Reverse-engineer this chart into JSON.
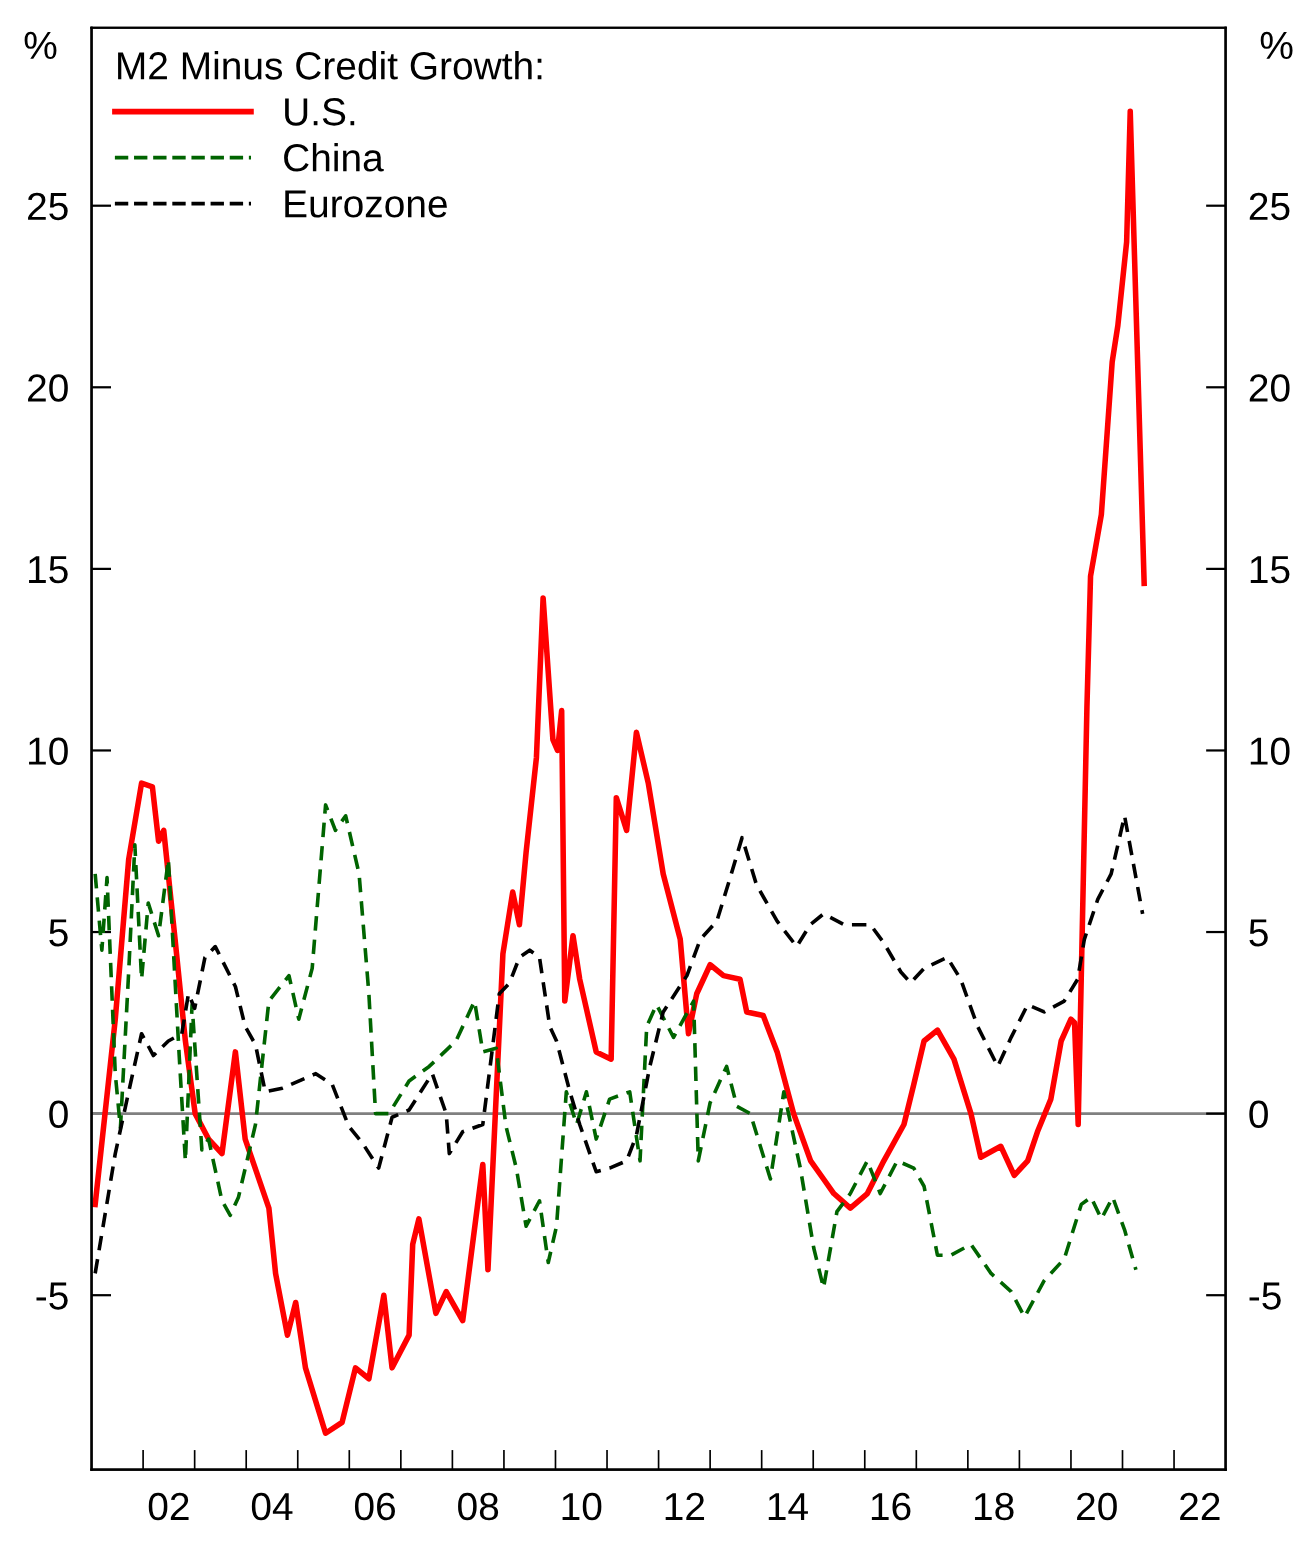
{
  "chart_data": {
    "type": "line",
    "ylabel": "%",
    "y2label": "%",
    "legend_title": "M2 Minus Credit Growth:",
    "legend": "top left",
    "grid": false,
    "xlim": [
      2000.5,
      2022.5
    ],
    "xticks": [
      {
        "value": 2001.5,
        "label": null
      },
      {
        "value": 2002.5,
        "label": null
      },
      {
        "value": 2003.5,
        "label": null
      },
      {
        "value": 2004.5,
        "label": null
      },
      {
        "value": 2005.5,
        "label": null
      },
      {
        "value": 2006.5,
        "label": null
      },
      {
        "value": 2007.5,
        "label": null
      },
      {
        "value": 2008.5,
        "label": null
      },
      {
        "value": 2009.5,
        "label": null
      },
      {
        "value": 2010.5,
        "label": null
      },
      {
        "value": 2011.5,
        "label": null
      },
      {
        "value": 2012.5,
        "label": null
      },
      {
        "value": 2013.5,
        "label": null
      },
      {
        "value": 2014.5,
        "label": null
      },
      {
        "value": 2015.5,
        "label": null
      },
      {
        "value": 2016.5,
        "label": null
      },
      {
        "value": 2017.5,
        "label": null
      },
      {
        "value": 2018.5,
        "label": null
      },
      {
        "value": 2019.5,
        "label": null
      },
      {
        "value": 2020.5,
        "label": null
      },
      {
        "value": 2021.5,
        "label": null
      },
      {
        "value": 2002,
        "label": "02"
      },
      {
        "value": 2004,
        "label": "04"
      },
      {
        "value": 2006,
        "label": "06"
      },
      {
        "value": 2008,
        "label": "08"
      },
      {
        "value": 2010,
        "label": "10"
      },
      {
        "value": 2012,
        "label": "12"
      },
      {
        "value": 2014,
        "label": "14"
      },
      {
        "value": 2016,
        "label": "16"
      },
      {
        "value": 2018,
        "label": "18"
      },
      {
        "value": 2020,
        "label": "20"
      },
      {
        "value": 2022,
        "label": "22"
      }
    ],
    "ylim": [
      -9.8,
      29.9
    ],
    "yticks": [
      -5,
      0,
      5,
      10,
      15,
      20,
      25
    ],
    "y2lim": [
      -9.8,
      29.9
    ],
    "y2ticks": [
      -5,
      0,
      5,
      10,
      15,
      20,
      25
    ],
    "ref_lines": [
      {
        "axis": "y",
        "value": 0,
        "color": "#808080"
      }
    ],
    "series": [
      {
        "name": "U.S.",
        "color": "#ff0000",
        "line_style": "solid",
        "x": [
          2000.57,
          2000.96,
          2001.22,
          2001.47,
          2001.68,
          2001.8,
          2001.9,
          2002.12,
          2002.32,
          2002.51,
          2002.77,
          2003.03,
          2003.29,
          2003.48,
          2003.94,
          2004.07,
          2004.3,
          2004.46,
          2004.65,
          2005.04,
          2005.36,
          2005.62,
          2005.88,
          2006.17,
          2006.33,
          2006.66,
          2006.73,
          2006.85,
          2007.18,
          2007.38,
          2007.7,
          2008.09,
          2008.19,
          2008.48,
          2008.67,
          2008.8,
          2008.93,
          2009.13,
          2009.26,
          2009.45,
          2009.54,
          2009.62,
          2009.68,
          2009.84,
          2009.97,
          2010.29,
          2010.58,
          2010.68,
          2010.88,
          2011.07,
          2011.3,
          2011.59,
          2011.92,
          2012.08,
          2012.24,
          2012.5,
          2012.76,
          2013.08,
          2013.21,
          2013.53,
          2013.8,
          2014.12,
          2014.45,
          2014.7,
          2014.9,
          2015.22,
          2015.55,
          2015.87,
          2016.26,
          2016.45,
          2016.65,
          2016.91,
          2017.23,
          2017.56,
          2017.75,
          2018.14,
          2018.4,
          2018.66,
          2018.85,
          2019.11,
          2019.31,
          2019.5,
          2019.57,
          2019.64,
          2019.81,
          2019.88,
          2020.09,
          2020.3,
          2020.41,
          2020.58,
          2020.65,
          2020.92
        ],
        "values": [
          -2.5,
          2.6,
          7.0,
          9.1,
          9.0,
          7.5,
          7.8,
          4.8,
          2.0,
          0,
          -0.7,
          -1.1,
          1.7,
          -0.7,
          -2.6,
          -4.4,
          -6.1,
          -5.2,
          -7.0,
          -8.8,
          -8.5,
          -7.0,
          -7.3,
          -5.0,
          -7.0,
          -6.1,
          -3.6,
          -2.9,
          -5.5,
          -4.9,
          -5.7,
          -1.4,
          -4.3,
          4.4,
          6.1,
          5.2,
          7.2,
          9.8,
          14.2,
          10.3,
          10.0,
          11.1,
          3.1,
          4.9,
          3.7,
          1.7,
          1.5,
          8.7,
          7.8,
          10.5,
          9.1,
          6.6,
          4.8,
          2.2,
          3.3,
          4.1,
          3.8,
          3.7,
          2.8,
          2.7,
          1.7,
          0,
          -1.3,
          -1.8,
          -2.2,
          -2.6,
          -2.2,
          -1.3,
          -0.3,
          0.8,
          2.0,
          2.3,
          1.5,
          0,
          -1.2,
          -0.9,
          -1.7,
          -1.3,
          -0.5,
          0.4,
          2.0,
          2.6,
          2.5,
          -0.3,
          11.2,
          14.8,
          16.5,
          20.7,
          21.7,
          24.0,
          27.6,
          14.6
        ]
      },
      {
        "name": "China",
        "color": "#006400",
        "line_style": "dashed",
        "x": [
          2000.57,
          2000.7,
          2000.8,
          2000.96,
          2001.06,
          2001.22,
          2001.34,
          2001.47,
          2001.6,
          2001.8,
          2001.99,
          2002.2,
          2002.32,
          2002.45,
          2002.64,
          2002.77,
          2003.03,
          2003.19,
          2003.35,
          2003.68,
          2003.94,
          2004.33,
          2004.52,
          2004.78,
          2005.04,
          2005.23,
          2005.43,
          2005.69,
          2005.88,
          2006.01,
          2006.27,
          2006.66,
          2007.05,
          2007.57,
          2007.93,
          2008.09,
          2008.35,
          2008.54,
          2008.74,
          2008.93,
          2009.19,
          2009.36,
          2009.52,
          2009.71,
          2009.91,
          2010.1,
          2010.29,
          2010.55,
          2010.94,
          2011.14,
          2011.27,
          2011.46,
          2011.79,
          2012.18,
          2012.27,
          2012.5,
          2012.82,
          2013.02,
          2013.28,
          2013.67,
          2013.93,
          2014.25,
          2014.51,
          2014.7,
          2014.96,
          2015.22,
          2015.55,
          2015.8,
          2016.13,
          2016.45,
          2016.65,
          2016.91,
          2017.17,
          2017.56,
          2017.95,
          2018.34,
          2018.6,
          2018.98,
          2019.37,
          2019.7,
          2019.89,
          2020.09,
          2020.31,
          2020.54,
          2020.76
        ],
        "values": [
          6.6,
          4.5,
          6.5,
          1.1,
          -0.4,
          3.9,
          7.4,
          3.7,
          5.8,
          4.9,
          7.0,
          1.6,
          -1.3,
          3.0,
          -1.0,
          -0.7,
          -2.4,
          -2.8,
          -2.3,
          -0.3,
          3.1,
          3.8,
          2.6,
          4.0,
          8.5,
          7.8,
          8.2,
          6.6,
          3.3,
          0,
          0,
          0.9,
          1.3,
          2.0,
          3.1,
          1.7,
          1.8,
          -0.35,
          -1.5,
          -3.1,
          -2.4,
          -4.1,
          -3.1,
          0.6,
          -0.3,
          0.6,
          -0.7,
          0.4,
          0.6,
          -1.3,
          2.4,
          3.0,
          2.1,
          3.1,
          -1.3,
          0.3,
          1.3,
          0.2,
          0,
          -1.8,
          0.6,
          -1.5,
          -3.7,
          -4.8,
          -2.7,
          -2.2,
          -1.3,
          -2.2,
          -1.3,
          -1.5,
          -2.0,
          -3.9,
          -3.9,
          -3.6,
          -4.4,
          -4.9,
          -5.6,
          -4.6,
          -4.0,
          -2.5,
          -2.3,
          -2.9,
          -2.3,
          -3.2,
          -4.3
        ]
      },
      {
        "name": "Eurozone",
        "color": "#000000",
        "line_style": "dashed",
        "x": [
          2000.57,
          2000.96,
          2001.22,
          2001.47,
          2001.7,
          2001.99,
          2002.25,
          2002.38,
          2002.5,
          2002.7,
          2002.9,
          2003.29,
          2003.48,
          2003.68,
          2003.87,
          2004.2,
          2004.85,
          2005.17,
          2005.49,
          2005.75,
          2006.07,
          2006.33,
          2006.66,
          2007.11,
          2007.38,
          2007.44,
          2007.7,
          2008.09,
          2008.41,
          2008.61,
          2008.8,
          2009.0,
          2009.19,
          2009.39,
          2009.52,
          2009.78,
          2009.97,
          2010.29,
          2010.55,
          2010.88,
          2011.07,
          2011.33,
          2011.59,
          2012.05,
          2012.31,
          2012.63,
          2012.89,
          2013.12,
          2013.4,
          2013.8,
          2014.18,
          2014.44,
          2014.7,
          2015.1,
          2015.61,
          2015.87,
          2016.2,
          2016.39,
          2016.65,
          2017.1,
          2017.36,
          2017.69,
          2018.08,
          2018.34,
          2018.66,
          2018.98,
          2019.37,
          2019.63,
          2019.76,
          2020.02,
          2020.28,
          2020.54,
          2020.89
        ],
        "values": [
          -4.4,
          -1.1,
          0.6,
          2.2,
          1.6,
          2.0,
          2.2,
          3.3,
          2.9,
          4.3,
          4.6,
          3.5,
          2.4,
          1.9,
          0.6,
          0.7,
          1.1,
          0.8,
          -0.35,
          -0.8,
          -1.5,
          -0.1,
          0.1,
          1.1,
          0,
          -1.1,
          -0.5,
          -0.3,
          3.3,
          3.6,
          4.3,
          4.5,
          4.3,
          2.4,
          2.0,
          0.6,
          -0.3,
          -1.6,
          -1.5,
          -1.3,
          -0.6,
          1.3,
          2.8,
          3.8,
          4.8,
          5.3,
          6.5,
          7.6,
          6.3,
          5.3,
          4.6,
          5.2,
          5.5,
          5.2,
          5.2,
          4.7,
          3.9,
          3.6,
          4.0,
          4.3,
          3.7,
          2.4,
          1.3,
          2.1,
          3.0,
          2.8,
          3.1,
          3.7,
          4.8,
          5.9,
          6.6,
          8.2,
          5.5
        ]
      }
    ]
  }
}
